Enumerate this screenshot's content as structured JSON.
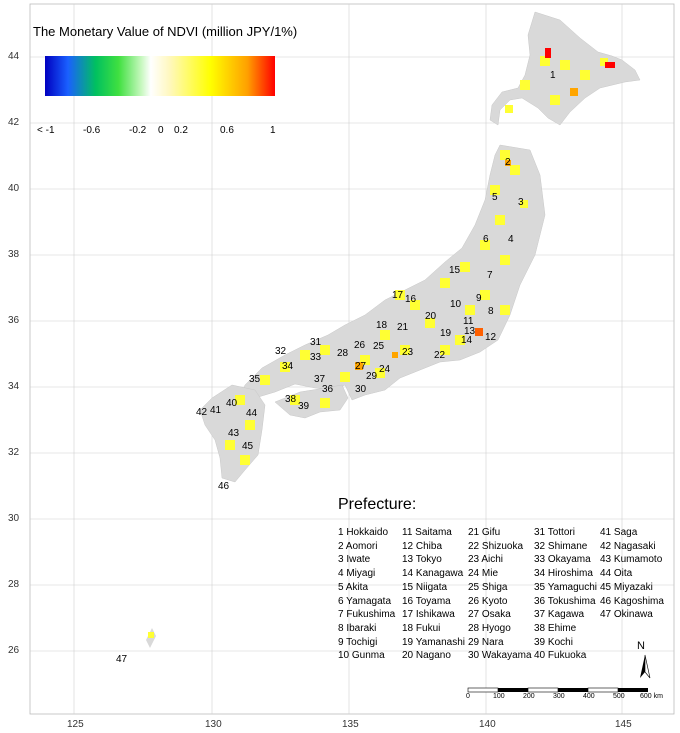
{
  "legend": {
    "title": "The Monetary Value of NDVI (million JPY/1%)",
    "ticks": [
      "< -1",
      "-0.6",
      "-0.2",
      "0",
      "0.2",
      "0.6",
      "1"
    ]
  },
  "prefecture_title": "Prefecture:",
  "prefectures": [
    "1 Hokkaido",
    "2 Aomori",
    "3 Iwate",
    "4 Miyagi",
    "5 Akita",
    "6 Yamagata",
    "7 Fukushima",
    "8 Ibaraki",
    "9 Tochigi",
    "10 Gunma",
    "11 Saitama",
    "12 Chiba",
    "13 Tokyo",
    "14 Kanagawa",
    "15 Niigata",
    "16 Toyama",
    "17 Ishikawa",
    "18 Fukui",
    "19 Yamanashi",
    "20 Nagano",
    "21 Gifu",
    "22 Shizuoka",
    "23 Aichi",
    "24 Mie",
    "25 Shiga",
    "26 Kyoto",
    "27 Osaka",
    "28 Hyogo",
    "29 Nara",
    "30 Wakayama",
    "31 Tottori",
    "32 Shimane",
    "33 Okayama",
    "34 Hiroshima",
    "35 Yamaguchi",
    "36 Tokushima",
    "37 Kagawa",
    "38 Ehime",
    "39 Kochi",
    "40 Fukuoka",
    "41 Saga",
    "42 Nagasaki",
    "43 Kumamoto",
    "44 Oita",
    "45 Miyazaki",
    "46 Kagoshima",
    "47 Okinawa"
  ],
  "map_numbers": [
    "1",
    "2",
    "3",
    "4",
    "5",
    "6",
    "7",
    "8",
    "9",
    "10",
    "11",
    "12",
    "13",
    "14",
    "15",
    "16",
    "17",
    "18",
    "19",
    "20",
    "21",
    "22",
    "23",
    "24",
    "25",
    "26",
    "27",
    "28",
    "29",
    "30",
    "31",
    "32",
    "33",
    "34",
    "35",
    "36",
    "37",
    "38",
    "39",
    "40",
    "41",
    "42",
    "43",
    "44",
    "45",
    "46",
    "47"
  ],
  "axes": {
    "x_ticks": [
      "125",
      "130",
      "135",
      "140",
      "145"
    ],
    "y_ticks": [
      "44",
      "42",
      "40",
      "38",
      "36",
      "34",
      "32",
      "30",
      "28",
      "26"
    ]
  },
  "north": "N",
  "scale": {
    "labels": [
      "0",
      "100",
      "200",
      "300",
      "400",
      "500",
      "600 km"
    ]
  },
  "colors": {
    "land": "#d9d9d9",
    "grid": "#d0d0d0",
    "yellow": "#ffff33",
    "orange": "#ffa500",
    "red": "#ff0000"
  }
}
